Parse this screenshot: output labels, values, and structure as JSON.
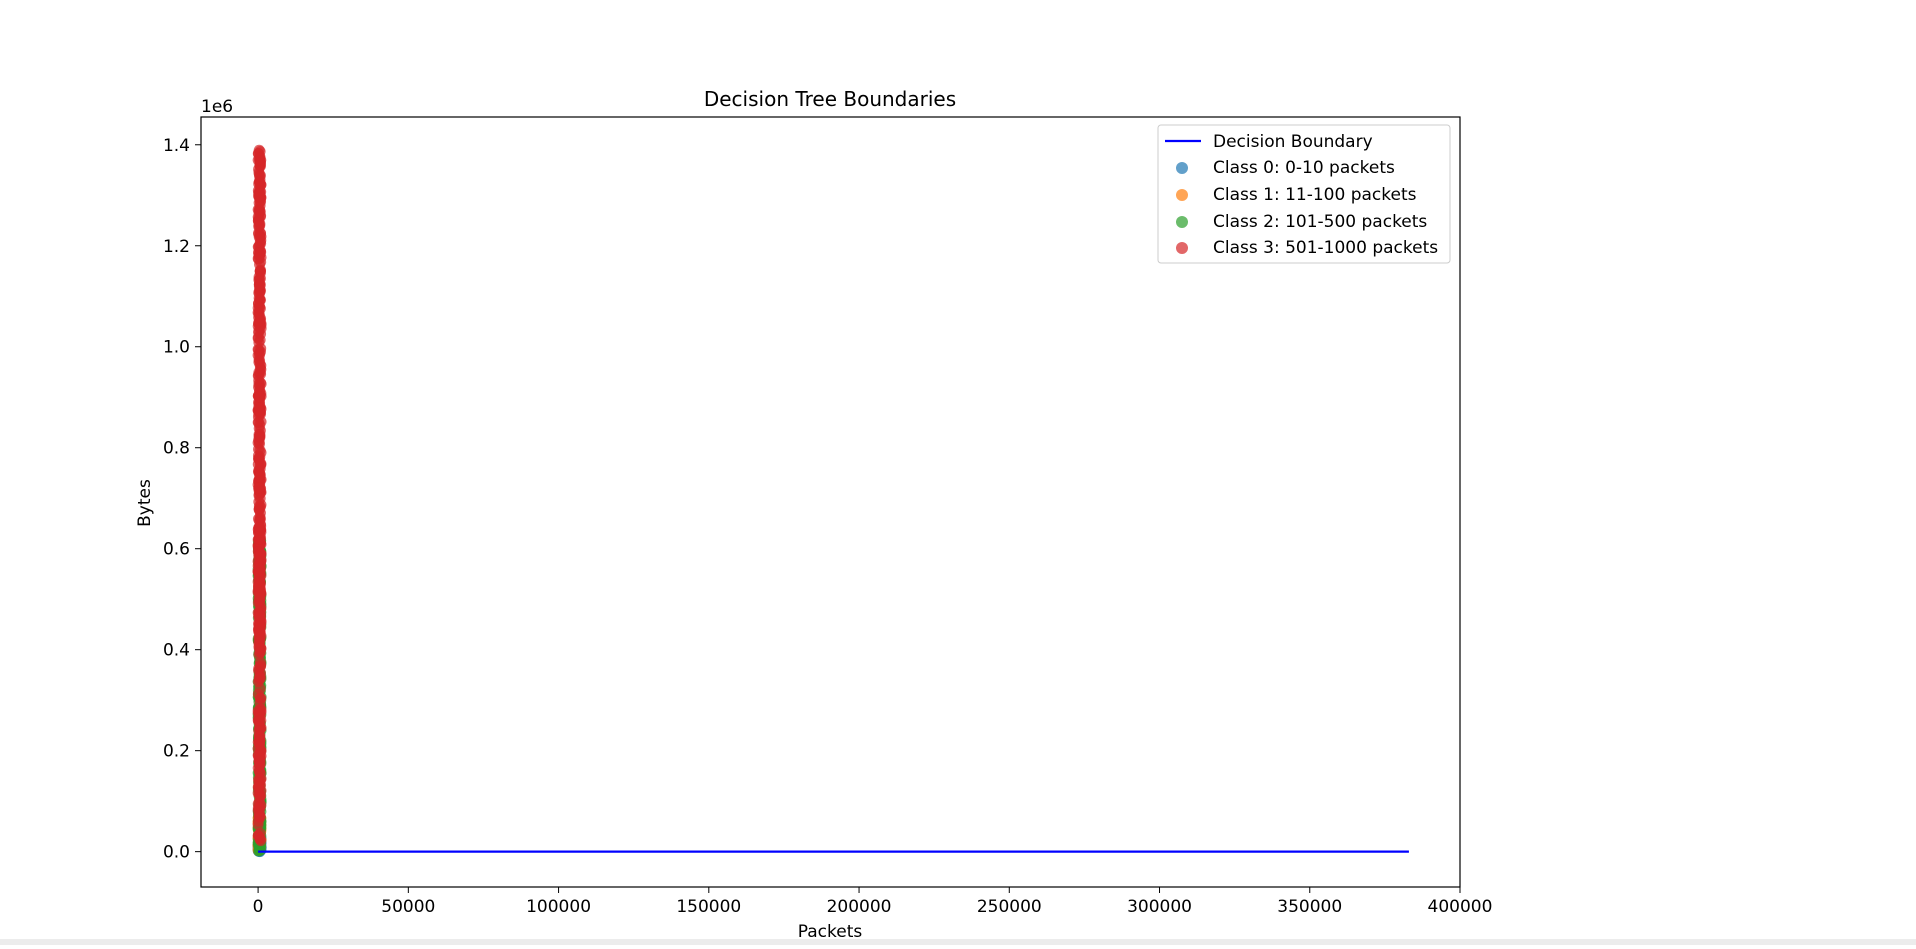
{
  "chart_data": {
    "type": "scatter",
    "title": "Decision Tree Boundaries",
    "xlabel": "Packets",
    "ylabel": "Bytes",
    "y_offset_label": "1e6",
    "xlim": [
      -19000,
      400000
    ],
    "ylim": [
      -70000,
      1455000
    ],
    "x_ticks": [
      0,
      50000,
      100000,
      150000,
      200000,
      250000,
      300000,
      350000,
      400000
    ],
    "x_tick_labels": [
      "0",
      "50000",
      "100000",
      "150000",
      "200000",
      "250000",
      "300000",
      "350000",
      "400000"
    ],
    "y_ticks": [
      0,
      200000,
      400000,
      600000,
      800000,
      1000000,
      1200000,
      1400000
    ],
    "y_tick_labels": [
      "0.0",
      "0.2",
      "0.4",
      "0.6",
      "0.8",
      "1.0",
      "1.2",
      "1.4"
    ],
    "grid": false,
    "legend_position": "top-right",
    "boundary": {
      "name": "Decision Boundary",
      "color": "#0000ff",
      "x": [
        0,
        383000
      ],
      "y": [
        0,
        0
      ]
    },
    "series": [
      {
        "name": "Class 0: 0-10 packets",
        "color": "#1f77b4",
        "y_min": 0,
        "y_max": 30000,
        "x_max": 1000
      },
      {
        "name": "Class 1: 11-100 packets",
        "color": "#ff7f0e",
        "y_min": 0,
        "y_max": 70000,
        "x_max": 1000
      },
      {
        "name": "Class 2: 101-500 packets",
        "color": "#2ca02c",
        "y_min": 0,
        "y_max": 620000,
        "x_max": 1000
      },
      {
        "name": "Class 3: 501-1000 packets",
        "color": "#d62728",
        "y_min": 20000,
        "y_max": 1390000,
        "x_max": 1000
      }
    ]
  }
}
